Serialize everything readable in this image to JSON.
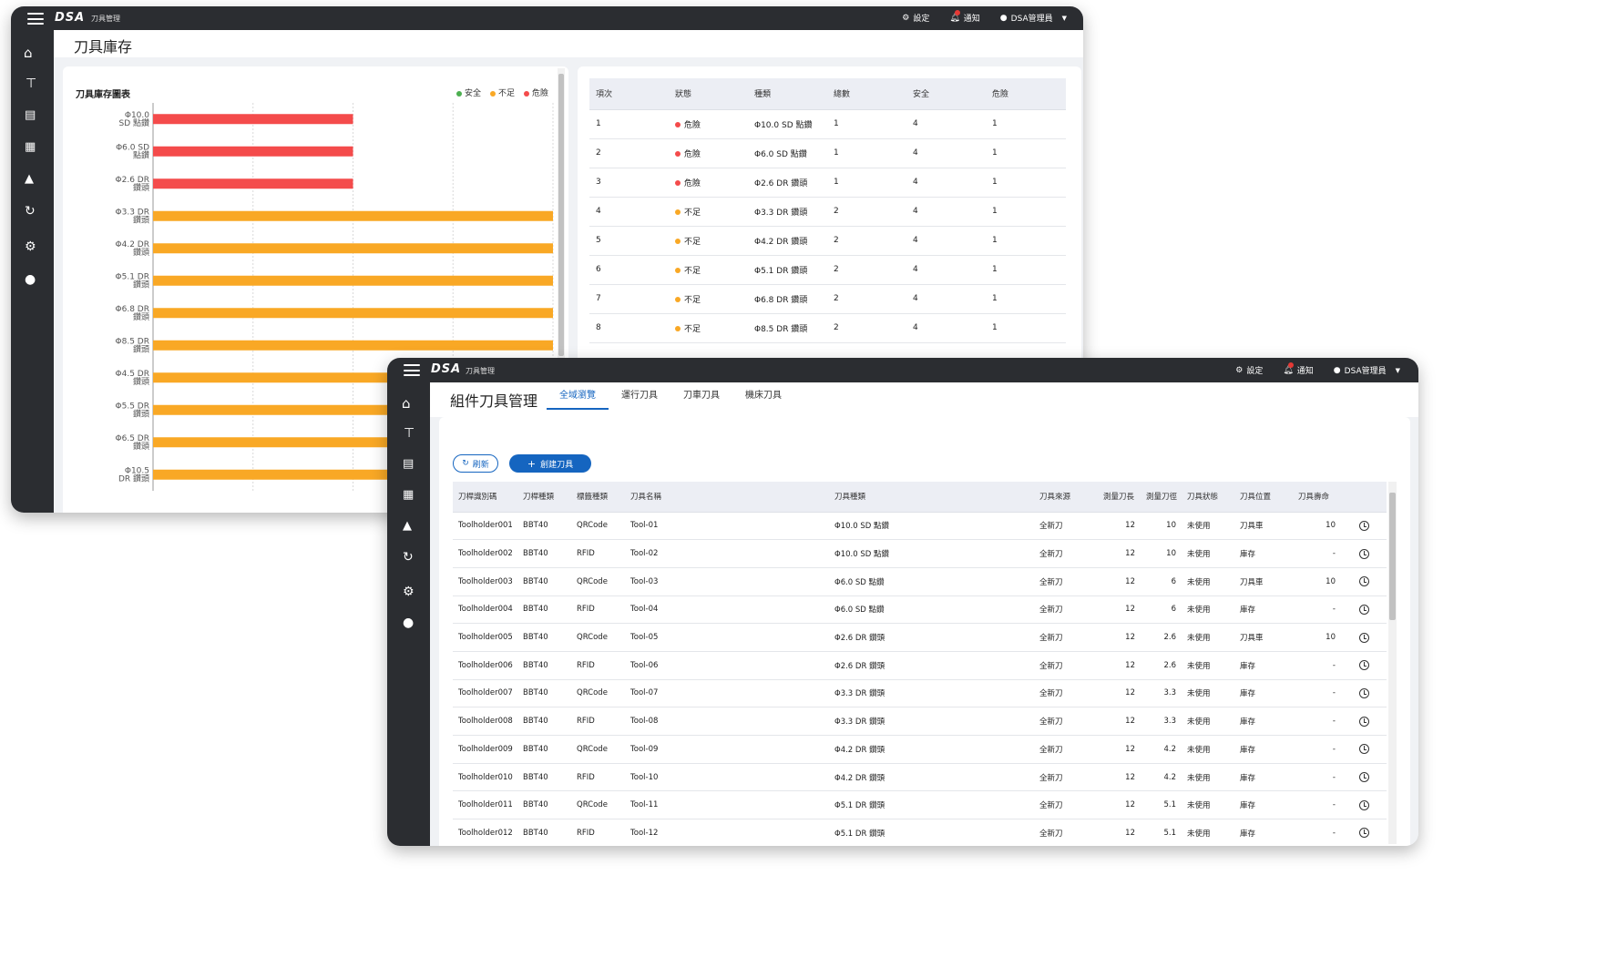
{
  "app": {
    "logo": "DSA",
    "name": "刀具管理"
  },
  "topbar": {
    "settings_label": "設定",
    "notifications_label": "通知",
    "user_label": "DSA管理員"
  },
  "sidebar_icons": [
    "home-icon",
    "tool-icon",
    "storefront-icon",
    "inventory-doc-icon",
    "factory-icon",
    "history-icon",
    "gear-icon",
    "user-icon"
  ],
  "colors": {
    "safe": "#4caf50",
    "insufficient": "#f9a825",
    "danger": "#f44b4b",
    "accent": "#1565c0",
    "dark": "#2b2d31"
  },
  "inventory_window": {
    "page_title": "刀具庫存",
    "chart_title": "刀具庫存圖表",
    "legend": {
      "safe": "安全",
      "insufficient": "不足",
      "danger": "危險"
    }
  },
  "chart_data": {
    "type": "bar",
    "orientation": "horizontal",
    "title": "刀具庫存圖表",
    "categories": [
      [
        "Φ10.0",
        "SD 點鑽"
      ],
      [
        "Φ6.0 SD",
        "點鑽"
      ],
      [
        "Φ2.6 DR",
        "鑽頭"
      ],
      [
        "Φ3.3 DR",
        "鑽頭"
      ],
      [
        "Φ4.2 DR",
        "鑽頭"
      ],
      [
        "Φ5.1 DR",
        "鑽頭"
      ],
      [
        "Φ6.8 DR",
        "鑽頭"
      ],
      [
        "Φ8.5 DR",
        "鑽頭"
      ],
      [
        "Φ4.5 DR",
        "鑽頭"
      ],
      [
        "Φ5.5 DR",
        "鑽頭"
      ],
      [
        "Φ6.5 DR",
        "鑽頭"
      ],
      [
        "Φ10.5",
        "DR 鑽頭"
      ]
    ],
    "values": [
      1,
      1,
      1,
      2,
      2,
      2,
      2,
      2,
      2,
      2,
      2,
      2
    ],
    "status": [
      "danger",
      "danger",
      "danger",
      "insufficient",
      "insufficient",
      "insufficient",
      "insufficient",
      "insufficient",
      "insufficient",
      "insufficient",
      "insufficient",
      "insufficient"
    ],
    "xlim": [
      0,
      2
    ],
    "grid": true,
    "legend_position": "top-right"
  },
  "inventory_table": {
    "headers": [
      "項次",
      "狀態",
      "種類",
      "總數",
      "安全",
      "危險"
    ],
    "rows": [
      {
        "no": "1",
        "status": "危險",
        "level": "danger",
        "type": "Φ10.0 SD 點鑽",
        "total": "1",
        "safe": "4",
        "danger": "1"
      },
      {
        "no": "2",
        "status": "危險",
        "level": "danger",
        "type": "Φ6.0 SD 點鑽",
        "total": "1",
        "safe": "4",
        "danger": "1"
      },
      {
        "no": "3",
        "status": "危險",
        "level": "danger",
        "type": "Φ2.6 DR 鑽頭",
        "total": "1",
        "safe": "4",
        "danger": "1"
      },
      {
        "no": "4",
        "status": "不足",
        "level": "insufficient",
        "type": "Φ3.3 DR 鑽頭",
        "total": "2",
        "safe": "4",
        "danger": "1"
      },
      {
        "no": "5",
        "status": "不足",
        "level": "insufficient",
        "type": "Φ4.2 DR 鑽頭",
        "total": "2",
        "safe": "4",
        "danger": "1"
      },
      {
        "no": "6",
        "status": "不足",
        "level": "insufficient",
        "type": "Φ5.1 DR 鑽頭",
        "total": "2",
        "safe": "4",
        "danger": "1"
      },
      {
        "no": "7",
        "status": "不足",
        "level": "insufficient",
        "type": "Φ6.8 DR 鑽頭",
        "total": "2",
        "safe": "4",
        "danger": "1"
      },
      {
        "no": "8",
        "status": "不足",
        "level": "insufficient",
        "type": "Φ8.5 DR 鑽頭",
        "total": "2",
        "safe": "4",
        "danger": "1"
      }
    ]
  },
  "tools_window": {
    "page_title": "組件刀具管理",
    "tabs": [
      "全域瀏覽",
      "運行刀具",
      "刀車刀具",
      "機床刀具"
    ],
    "refresh_label": "刷新",
    "create_label": "創建刀具",
    "headers": [
      "刀桿識別碼",
      "刀桿種類",
      "標籤種類",
      "刀具名稱",
      "刀具種類",
      "刀具來源",
      "測量刀長",
      "測量刀徑",
      "刀具狀態",
      "刀具位置",
      "刀具壽命"
    ],
    "rows": [
      [
        "Toolholder001",
        "BBT40",
        "QRCode",
        "Tool-01",
        "Φ10.0 SD 點鑽",
        "全新刀",
        "12",
        "10",
        "未使用",
        "刀具車",
        "10"
      ],
      [
        "Toolholder002",
        "BBT40",
        "RFID",
        "Tool-02",
        "Φ10.0 SD 點鑽",
        "全新刀",
        "12",
        "10",
        "未使用",
        "庫存",
        "-"
      ],
      [
        "Toolholder003",
        "BBT40",
        "QRCode",
        "Tool-03",
        "Φ6.0 SD 點鑽",
        "全新刀",
        "12",
        "6",
        "未使用",
        "刀具車",
        "10"
      ],
      [
        "Toolholder004",
        "BBT40",
        "RFID",
        "Tool-04",
        "Φ6.0 SD 點鑽",
        "全新刀",
        "12",
        "6",
        "未使用",
        "庫存",
        "-"
      ],
      [
        "Toolholder005",
        "BBT40",
        "QRCode",
        "Tool-05",
        "Φ2.6 DR 鑽頭",
        "全新刀",
        "12",
        "2.6",
        "未使用",
        "刀具車",
        "10"
      ],
      [
        "Toolholder006",
        "BBT40",
        "RFID",
        "Tool-06",
        "Φ2.6 DR 鑽頭",
        "全新刀",
        "12",
        "2.6",
        "未使用",
        "庫存",
        "-"
      ],
      [
        "Toolholder007",
        "BBT40",
        "QRCode",
        "Tool-07",
        "Φ3.3 DR 鑽頭",
        "全新刀",
        "12",
        "3.3",
        "未使用",
        "庫存",
        "-"
      ],
      [
        "Toolholder008",
        "BBT40",
        "RFID",
        "Tool-08",
        "Φ3.3 DR 鑽頭",
        "全新刀",
        "12",
        "3.3",
        "未使用",
        "庫存",
        "-"
      ],
      [
        "Toolholder009",
        "BBT40",
        "QRCode",
        "Tool-09",
        "Φ4.2 DR 鑽頭",
        "全新刀",
        "12",
        "4.2",
        "未使用",
        "庫存",
        "-"
      ],
      [
        "Toolholder010",
        "BBT40",
        "RFID",
        "Tool-10",
        "Φ4.2 DR 鑽頭",
        "全新刀",
        "12",
        "4.2",
        "未使用",
        "庫存",
        "-"
      ],
      [
        "Toolholder011",
        "BBT40",
        "QRCode",
        "Tool-11",
        "Φ5.1 DR 鑽頭",
        "全新刀",
        "12",
        "5.1",
        "未使用",
        "庫存",
        "-"
      ],
      [
        "Toolholder012",
        "BBT40",
        "RFID",
        "Tool-12",
        "Φ5.1 DR 鑽頭",
        "全新刀",
        "12",
        "5.1",
        "未使用",
        "庫存",
        "-"
      ]
    ]
  }
}
